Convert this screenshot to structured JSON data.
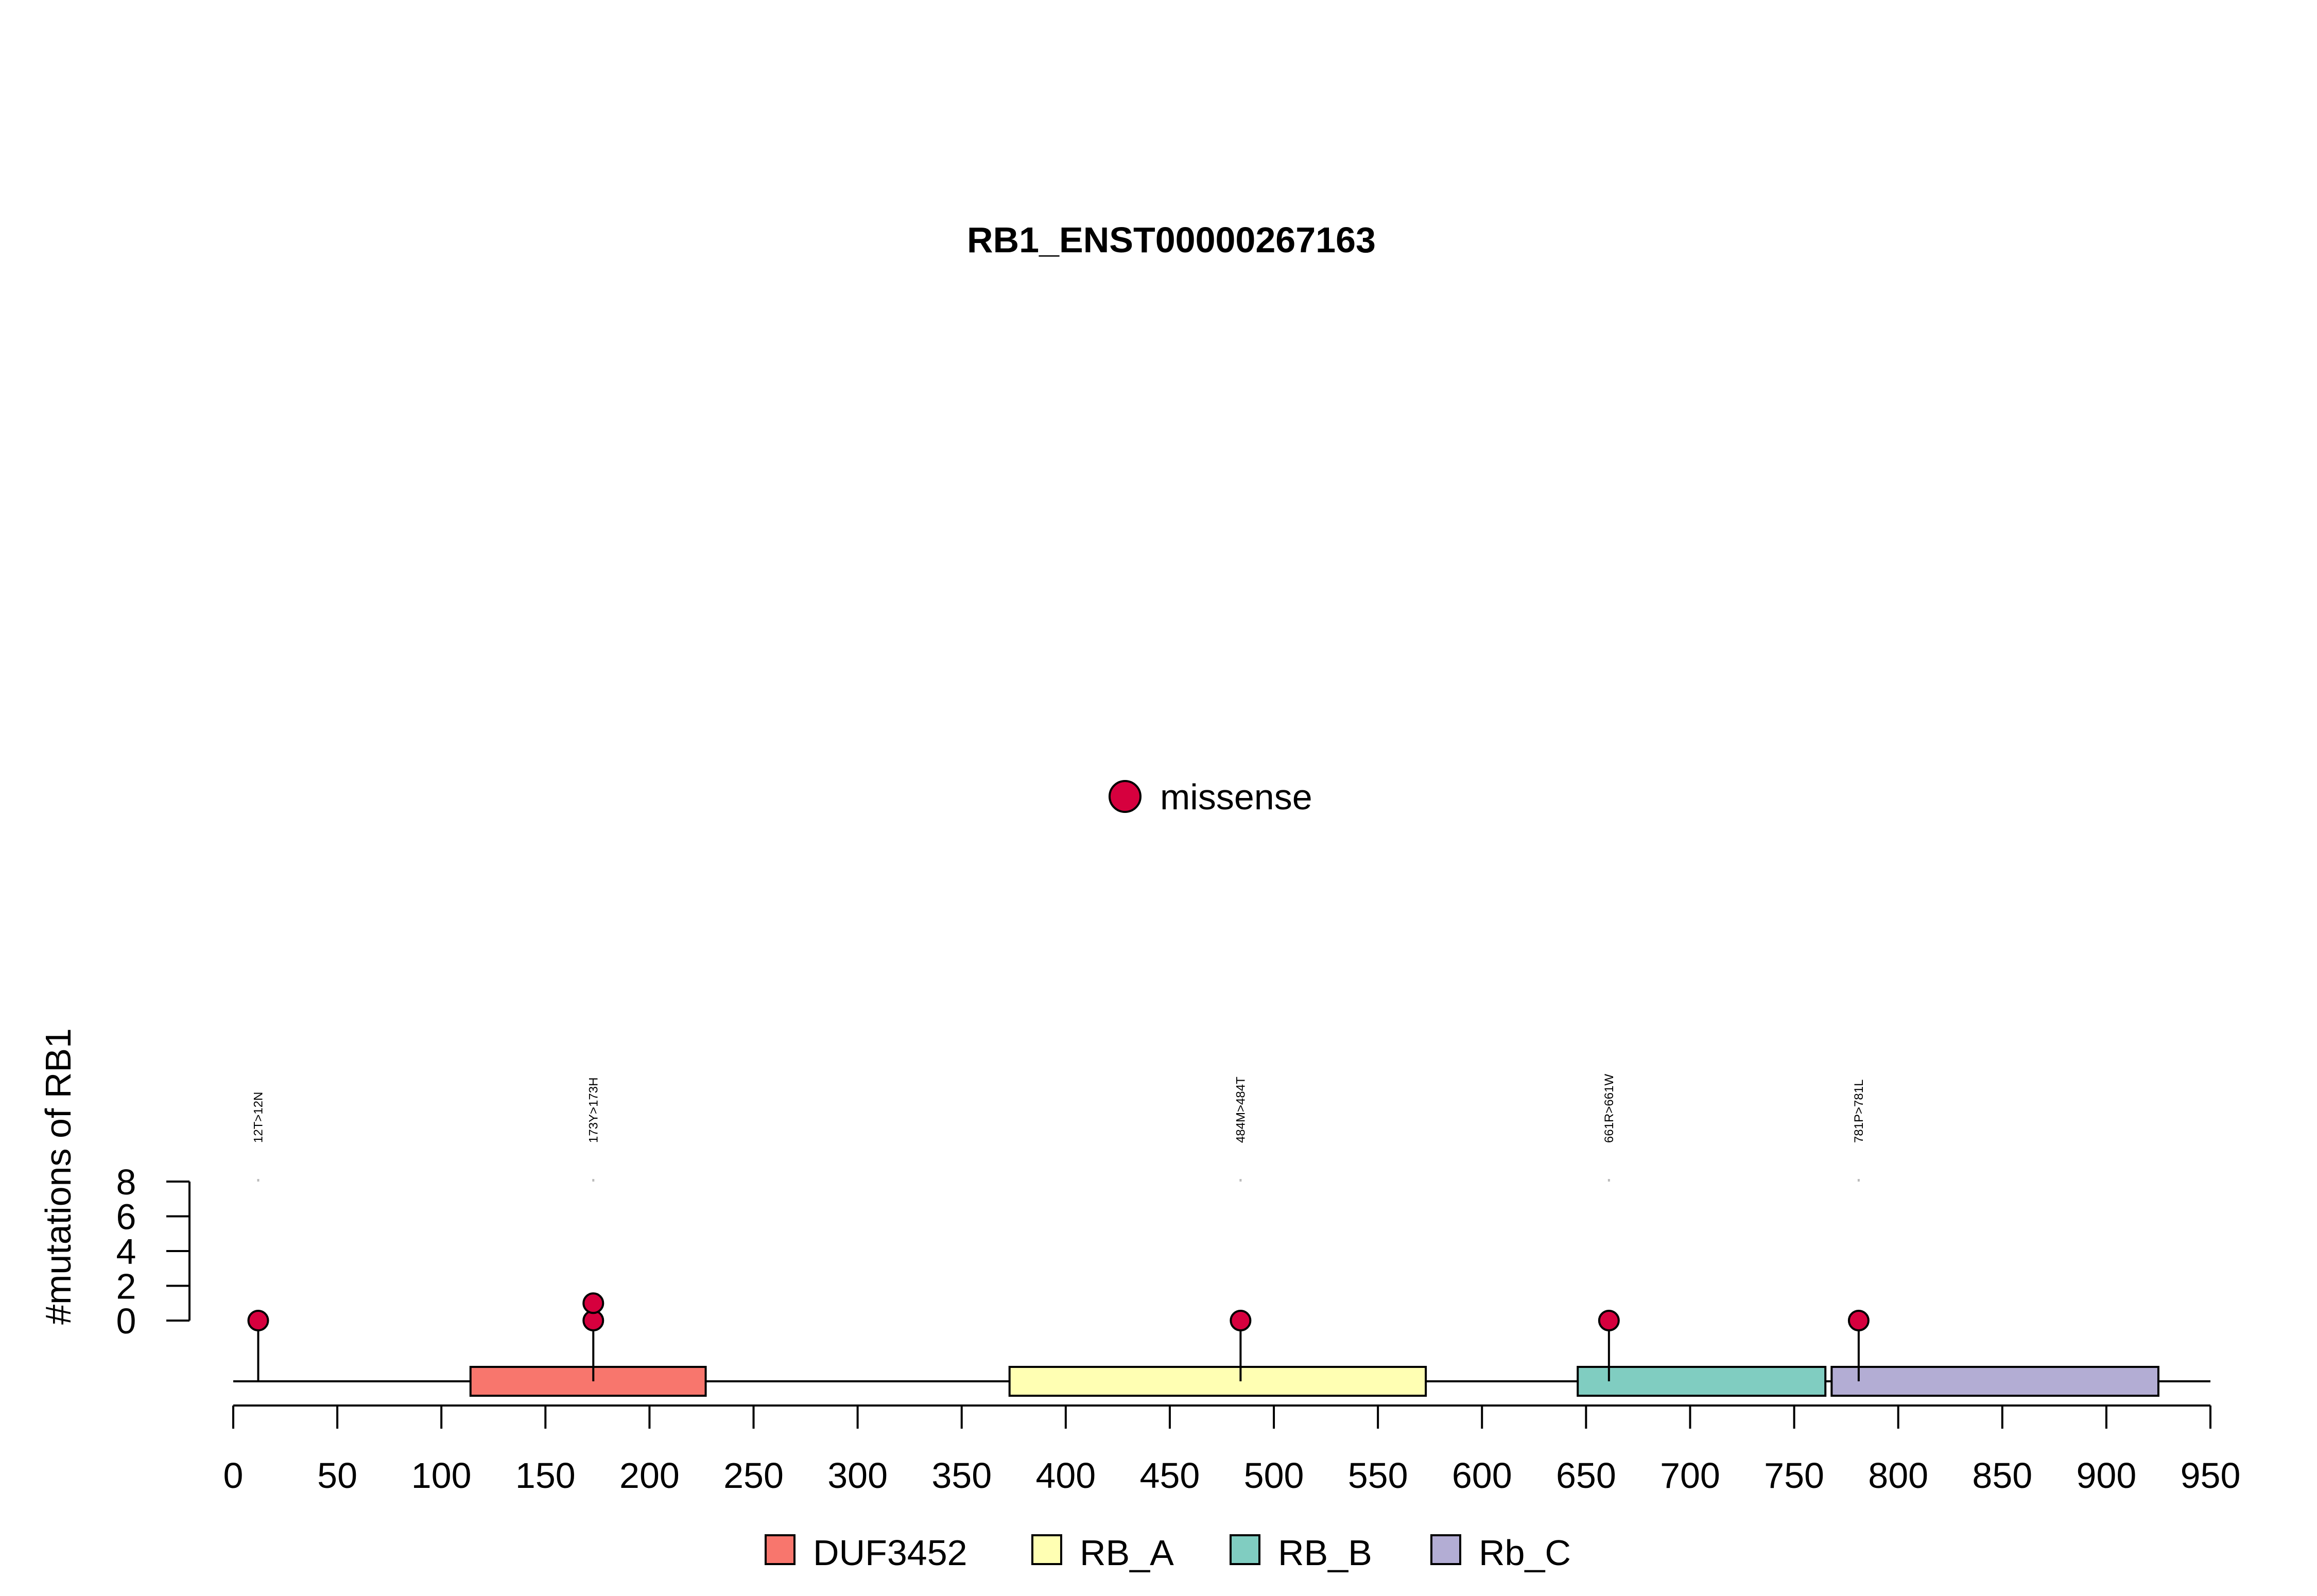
{
  "chart_data": {
    "type": "lollipop",
    "title": "RB1_ENST00000267163",
    "ylabel": "#mutations of RB1",
    "xlabel": "",
    "protein_length": 928,
    "xlim": [
      0,
      950
    ],
    "x_ticks": [
      0,
      50,
      100,
      150,
      200,
      250,
      300,
      350,
      400,
      450,
      500,
      550,
      600,
      650,
      700,
      750,
      800,
      850,
      900,
      950
    ],
    "ylim": [
      0,
      8
    ],
    "y_ticks": [
      0,
      2,
      4,
      6,
      8
    ],
    "mutation_type_legend": [
      {
        "label": "missense",
        "color": "#D6003E"
      }
    ],
    "mutations": [
      {
        "position": 12,
        "label": "12T>12N",
        "count": 1,
        "type": "missense"
      },
      {
        "position": 173,
        "label": "173Y>173H",
        "count": 2,
        "type": "missense"
      },
      {
        "position": 484,
        "label": "484M>484T",
        "count": 1,
        "type": "missense"
      },
      {
        "position": 661,
        "label": "661R>661W",
        "count": 1,
        "type": "missense"
      },
      {
        "position": 781,
        "label": "781P>781L",
        "count": 1,
        "type": "missense"
      }
    ],
    "domains": [
      {
        "name": "DUF3452",
        "start": 114,
        "end": 227,
        "color": "#F8766D"
      },
      {
        "name": "RB_A",
        "start": 373,
        "end": 573,
        "color": "#FFFFB3"
      },
      {
        "name": "RB_B",
        "start": 646,
        "end": 765,
        "color": "#80CDC1"
      },
      {
        "name": "Rb_C",
        "start": 768,
        "end": 925,
        "color": "#B3ADD4"
      }
    ],
    "domain_legend_placement": "bottom",
    "mutation_legend_placement": "center"
  }
}
